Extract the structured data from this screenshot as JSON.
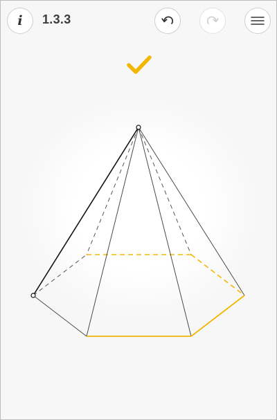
{
  "header": {
    "info_icon": "info-icon",
    "level": "1.3.3",
    "undo_icon": "undo-icon",
    "redo_icon": "redo-icon",
    "redo_enabled": false,
    "menu_icon": "hamburger-menu-icon"
  },
  "status": {
    "solved": true,
    "icon": "checkmark-icon"
  },
  "colors": {
    "accent": "#f2b705",
    "edge": "#4a4a4a",
    "constructed_edge": "#111111",
    "dashed_edge": "#555555",
    "icon": "#333333",
    "icon_disabled": "#d0d0d0",
    "border": "#bdbdbd"
  },
  "figure": {
    "type": "hexagonal-pyramid"
  }
}
